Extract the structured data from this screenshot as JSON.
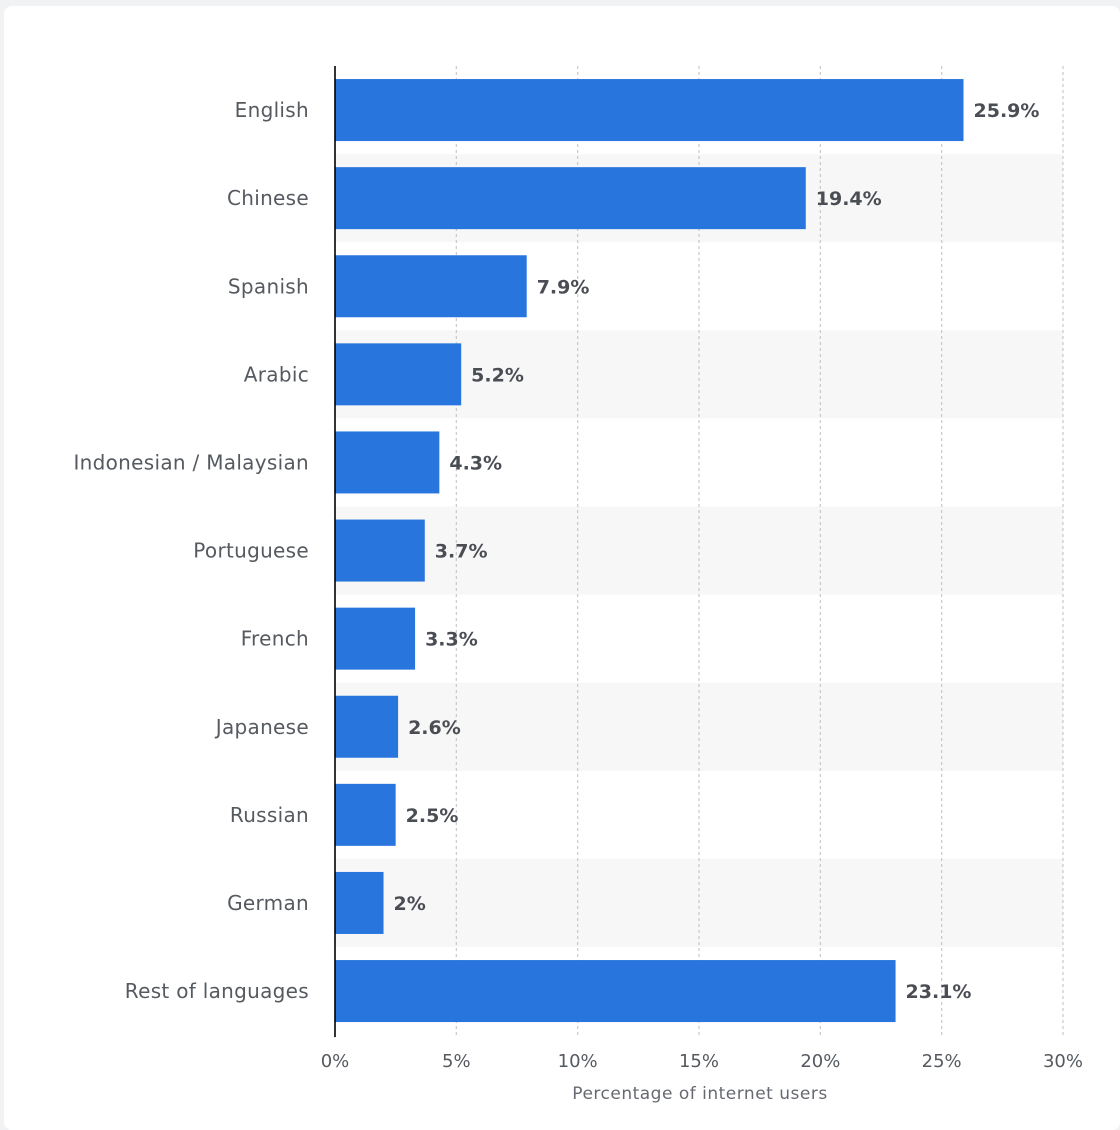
{
  "chart_data": {
    "type": "bar",
    "orientation": "horizontal",
    "categories": [
      "English",
      "Chinese",
      "Spanish",
      "Arabic",
      "Indonesian / Malaysian",
      "Portuguese",
      "French",
      "Japanese",
      "Russian",
      "German",
      "Rest of languages"
    ],
    "values": [
      25.9,
      19.4,
      7.9,
      5.2,
      4.3,
      3.7,
      3.3,
      2.6,
      2.5,
      2,
      23.1
    ],
    "value_labels": [
      "25.9%",
      "19.4%",
      "7.9%",
      "5.2%",
      "4.3%",
      "3.7%",
      "3.3%",
      "2.6%",
      "2.5%",
      "2%",
      "23.1%"
    ],
    "xlabel": "Percentage of internet users",
    "ylabel": "",
    "xlim": [
      0,
      30
    ],
    "ticks": [
      0,
      5,
      10,
      15,
      20,
      25,
      30
    ],
    "tick_labels": [
      "0%",
      "5%",
      "10%",
      "15%",
      "20%",
      "25%",
      "30%"
    ],
    "grid": true,
    "legend": "none",
    "colors": {
      "bar": "#2876dd",
      "band": "#f7f7f7",
      "grid": "#c8c8c8",
      "axis": "#000000"
    }
  }
}
